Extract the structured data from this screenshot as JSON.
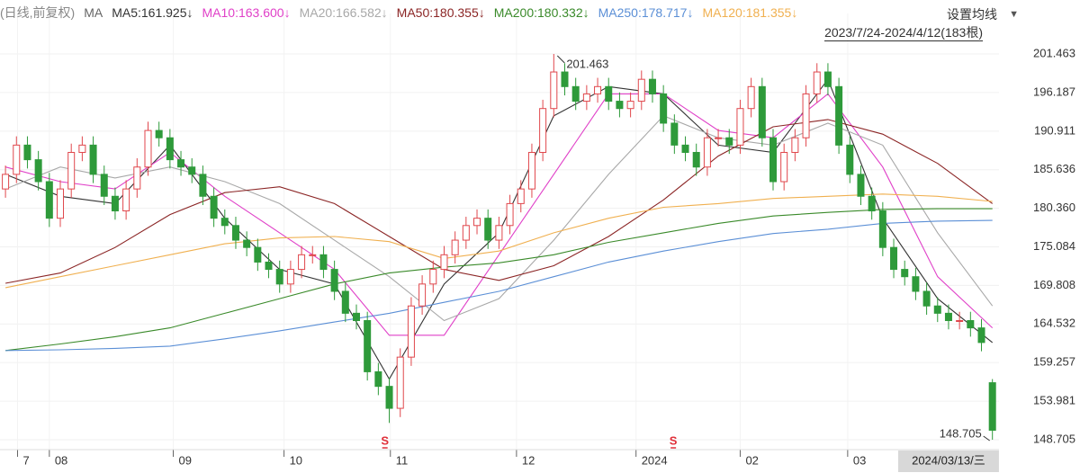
{
  "chart_data": {
    "type": "candlestick",
    "period_label": "(日线,前复权)",
    "ma_label": "MA",
    "settings_label": "设置均线",
    "range_label": "2023/7/24-2024/4/12(183根)",
    "up_color": "#e0474c",
    "down_color": "#2e9a3a",
    "grid": true,
    "xlim": [
      -0.5,
      90.6
    ],
    "ylim": [
      147.35,
      207.0
    ],
    "yticks": [
      148.705,
      153.981,
      159.257,
      164.532,
      169.808,
      175.084,
      {
        "value": 180.36,
        "label": "180.360"
      },
      185.636,
      190.911,
      196.187,
      201.463
    ],
    "xticks": [
      {
        "value": 1.1,
        "label": "7"
      },
      {
        "value": 4,
        "label": "08"
      },
      {
        "value": 15.3,
        "label": "09"
      },
      {
        "value": 25.4,
        "label": "10"
      },
      {
        "value": 35.1,
        "label": "11"
      },
      {
        "value": 46.6,
        "label": "12"
      },
      {
        "value": 57.5,
        "label": "2024"
      },
      {
        "value": 67,
        "label": "02"
      },
      {
        "value": 76.8,
        "label": "03"
      }
    ],
    "cursor_label": {
      "x": 86,
      "label": "2024/03/13/三"
    },
    "open": [
      183,
      185,
      189,
      187,
      184,
      179,
      183,
      188,
      189,
      185,
      182,
      180,
      183,
      186,
      191,
      190,
      187,
      186,
      185,
      182,
      179,
      178,
      176,
      175,
      173,
      172,
      170,
      172,
      174,
      174,
      172,
      169,
      166,
      165,
      158,
      156,
      153,
      160,
      167,
      170,
      172,
      174,
      176,
      178,
      179,
      176,
      178,
      181,
      183,
      188,
      194,
      199,
      197,
      195,
      196,
      197,
      195,
      194,
      195,
      198,
      196,
      192,
      189,
      188,
      186,
      190,
      190,
      189,
      194,
      197,
      190,
      184,
      188,
      190,
      196,
      199,
      197,
      189,
      185,
      182,
      180,
      175,
      172,
      171,
      169,
      167,
      166,
      165,
      165,
      164,
      156.5
    ],
    "high": [
      186.2,
      190.2,
      190.2,
      188.2,
      185.2,
      184.2,
      189.2,
      190.2,
      190.2,
      186.2,
      183.2,
      184.2,
      187.2,
      192.2,
      192.2,
      191.2,
      188.2,
      187.2,
      186.2,
      183.2,
      180.2,
      179.2,
      177.2,
      176.2,
      174.2,
      173.2,
      173.2,
      175.2,
      175.2,
      175.2,
      173.2,
      170.2,
      167.2,
      166.2,
      159.2,
      157.2,
      161.2,
      168.2,
      171.2,
      173.2,
      175.2,
      177.2,
      179.2,
      180.2,
      180.2,
      179.2,
      182.2,
      184.2,
      189.2,
      195.2,
      201.463,
      200.2,
      198.2,
      197.2,
      198.2,
      198.2,
      196.2,
      196.2,
      199.2,
      199.2,
      197.2,
      193.2,
      190.2,
      189.2,
      191.2,
      191.2,
      191.2,
      195.2,
      198.2,
      198.2,
      191.2,
      189.2,
      191.2,
      197.2,
      200.2,
      200.2,
      198.2,
      190.2,
      186.2,
      183.2,
      181.2,
      176.2,
      173.2,
      172.2,
      170.2,
      168.2,
      167.2,
      166.2,
      166.2,
      165.2,
      157
    ],
    "low": [
      181.8,
      183.8,
      185.8,
      182.8,
      177.8,
      177.8,
      181.8,
      186.8,
      183.8,
      180.8,
      178.8,
      178.8,
      181.8,
      184.8,
      188.8,
      185.8,
      184.8,
      183.8,
      180.8,
      177.8,
      176.8,
      174.8,
      173.8,
      171.8,
      170.8,
      168.8,
      168.8,
      170.8,
      172.8,
      170.8,
      167.8,
      164.8,
      163.8,
      156.8,
      154.8,
      151,
      151.8,
      158.8,
      165.8,
      168.8,
      170.8,
      172.8,
      174.8,
      176.8,
      174.8,
      174.8,
      176.8,
      179.8,
      181.8,
      186.8,
      192.8,
      195.8,
      193.8,
      193.8,
      194.8,
      193.8,
      192.8,
      192.8,
      193.8,
      194.8,
      190.8,
      187.8,
      186.8,
      184.8,
      184.8,
      188.8,
      187.8,
      187.8,
      192.8,
      188.8,
      182.8,
      182.8,
      186.8,
      188.8,
      194.8,
      195.8,
      187.8,
      183.8,
      180.8,
      178.8,
      173.8,
      170.8,
      169.8,
      167.8,
      165.8,
      164.8,
      163.8,
      163.8,
      162.8,
      160.8,
      148.705
    ],
    "close": [
      185,
      189,
      187,
      184,
      179,
      183,
      188,
      189,
      185,
      182,
      180,
      183,
      186,
      191,
      190,
      187,
      186,
      185,
      182,
      179,
      178,
      176,
      175,
      173,
      172,
      170,
      172,
      174,
      174,
      172,
      169,
      166,
      165,
      158,
      156,
      153,
      160,
      167,
      170,
      172,
      174,
      176,
      178,
      179,
      176,
      178,
      181,
      183,
      188,
      194,
      199,
      197,
      195,
      196,
      197,
      195,
      194,
      195,
      198,
      196,
      192,
      189,
      188,
      186,
      190,
      190,
      189,
      194,
      197,
      190,
      184,
      188,
      190,
      196,
      199,
      197,
      189,
      185,
      182,
      180,
      175,
      172,
      171,
      169,
      167,
      166,
      165,
      165,
      164,
      162,
      150
    ],
    "annotations": [
      {
        "x": 50,
        "value": 201.463
      },
      {
        "x": 90,
        "value": 148.705
      }
    ],
    "signals": [
      {
        "x": 34.6,
        "label": "S"
      },
      {
        "x": 60.9,
        "label": "S"
      }
    ],
    "ma_x": [
      0,
      5,
      10,
      15,
      20,
      25,
      30,
      35,
      40,
      45,
      50,
      55,
      60,
      65,
      70,
      75,
      80,
      85,
      90
    ],
    "series": [
      {
        "name": "MA5:161.925↓",
        "color": "#333333",
        "values": [
          185,
          182,
          181,
          189,
          179,
          172,
          170,
          157,
          170,
          177,
          193,
          197,
          196,
          189,
          188,
          198,
          179,
          168,
          162
        ]
      },
      {
        "name": "MA10:163.600↓",
        "color": "#e040c8",
        "values": [
          186,
          184,
          183,
          188,
          182,
          177,
          172,
          163,
          163,
          174,
          185,
          196,
          196,
          191,
          190,
          196,
          186,
          171,
          164
        ]
      },
      {
        "name": "MA20:166.582↓",
        "color": "#a8a8a8",
        "values": [
          183,
          186,
          184.5,
          186,
          184,
          181,
          176,
          171,
          165,
          168,
          176,
          185,
          193,
          190,
          189,
          192,
          189,
          177,
          167
        ]
      },
      {
        "name": "MA50:180.355↓",
        "color": "#8b2525",
        "values": [
          170.1,
          171.5,
          175,
          179.5,
          182.5,
          183.3,
          181,
          176.5,
          172,
          170.5,
          172.5,
          176.5,
          181.5,
          187.5,
          191.5,
          192.5,
          190.5,
          186.5,
          181
        ]
      },
      {
        "name": "MA200:180.332↓",
        "color": "#3a8a2a",
        "values": [
          160.9,
          161.8,
          162.8,
          164,
          166,
          168,
          170,
          171.5,
          172.3,
          172.9,
          174,
          175.7,
          177,
          178.3,
          179.3,
          179.8,
          180.2,
          180.3,
          180.3
        ]
      },
      {
        "name": "MA250:178.717↓",
        "color": "#5b8fd6",
        "values": [
          160.9,
          161,
          161.2,
          161.5,
          162.5,
          163.6,
          164.8,
          166,
          167.5,
          169,
          171,
          173,
          174.5,
          175.8,
          176.9,
          177.5,
          178.3,
          178.6,
          178.7
        ]
      },
      {
        "name": "MA120:181.355↓",
        "color": "#f0b050",
        "values": [
          169.5,
          171,
          172.5,
          174,
          175.5,
          176.3,
          176.5,
          175.8,
          173.5,
          174.5,
          177,
          179,
          180.5,
          181,
          181.7,
          182,
          182.3,
          182,
          181.3
        ]
      }
    ]
  }
}
